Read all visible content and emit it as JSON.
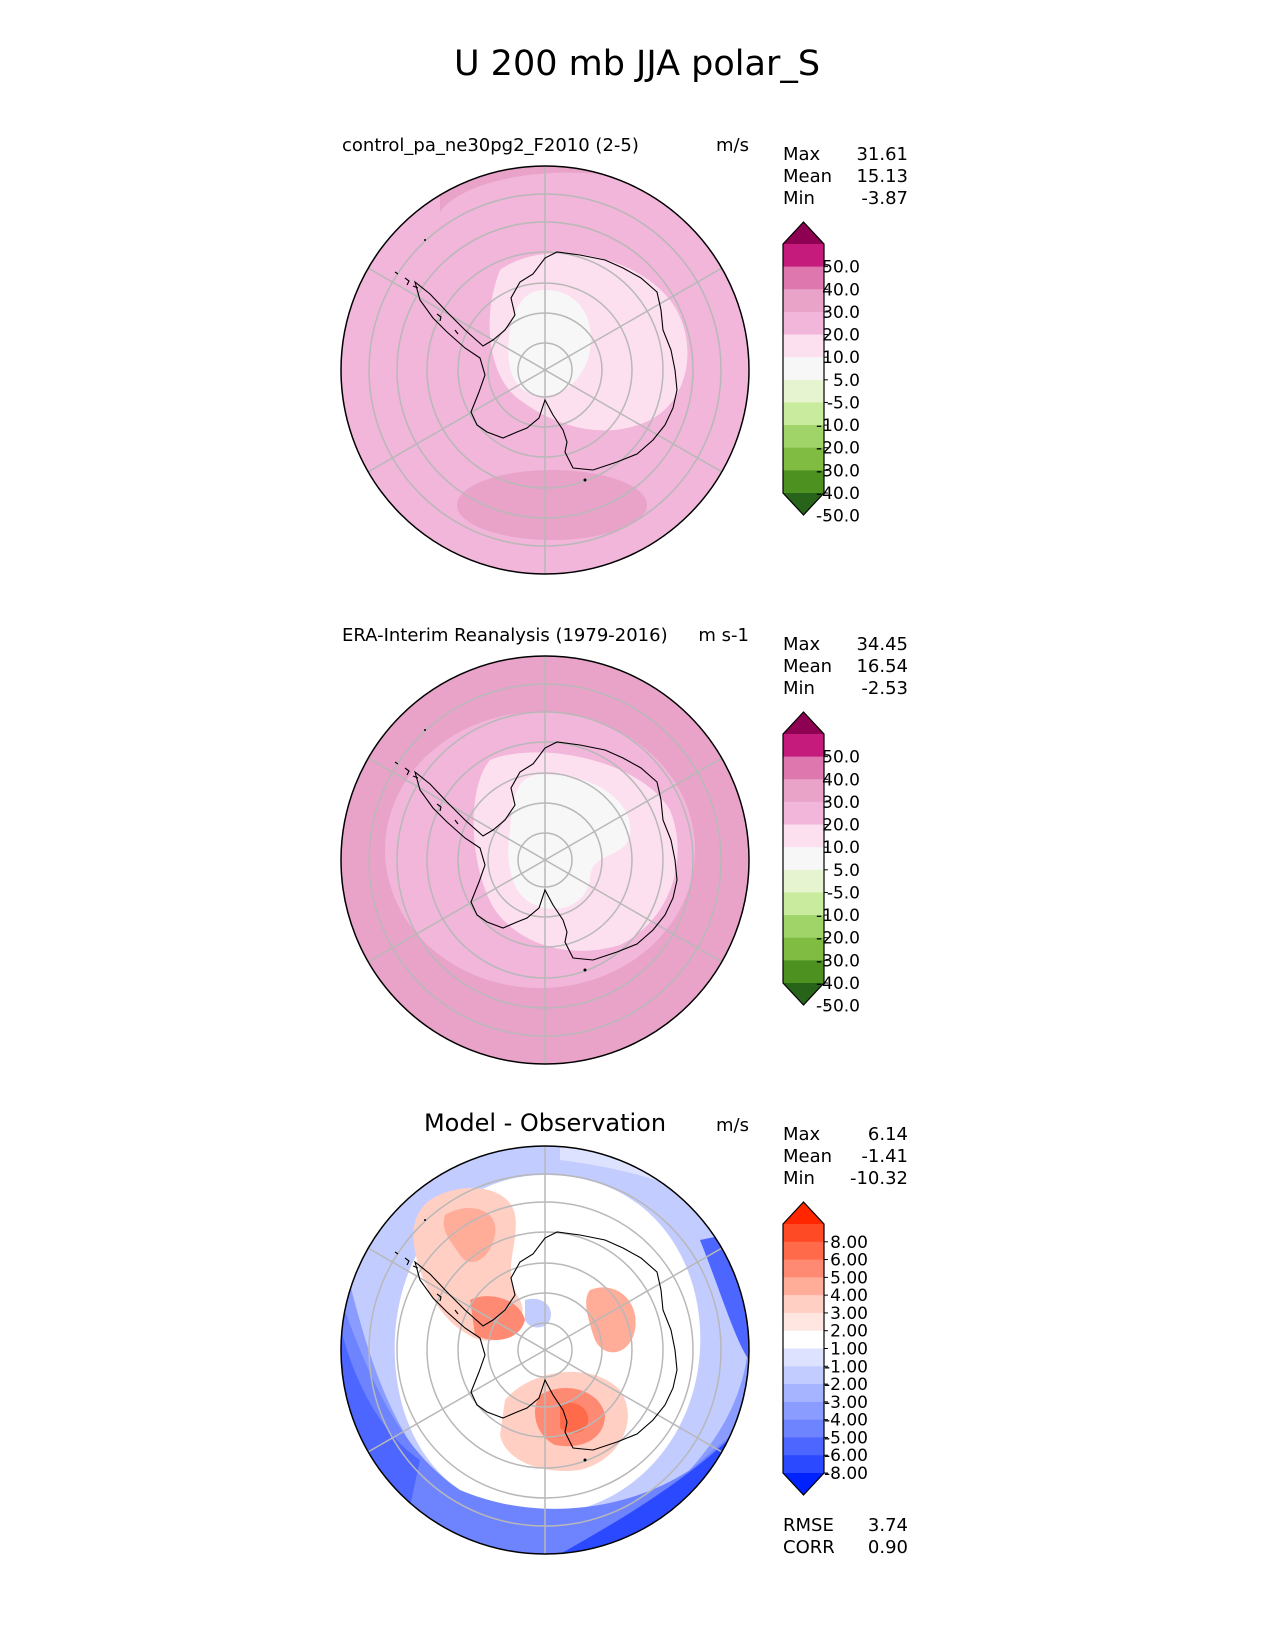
{
  "figure_title": "U 200 mb JJA polar_S",
  "colors": {
    "pink_scale": [
      "#8e0152",
      "#c51b7d",
      "#de77ae",
      "#e9a3c9",
      "#f1b6da",
      "#fde0ef",
      "#f7f7f7",
      "#e6f5d0",
      "#c9eb9e",
      "#a0d468",
      "#7fbc41",
      "#4d9221",
      "#276419"
    ],
    "diff_scale": [
      "#ff2600",
      "#ff4a26",
      "#ff6b4a",
      "#ff8a73",
      "#ffac99",
      "#ffcfc4",
      "#ffe6e0",
      "#ffffff",
      "#dde3ff",
      "#c2ccff",
      "#a6b4ff",
      "#8a9cff",
      "#6e84ff",
      "#4d66ff",
      "#2b4aff",
      "#0022ff"
    ],
    "grid": "#b8b8b8"
  },
  "chart_data": [
    {
      "type": "heatmap",
      "projection": "south polar stereographic",
      "title_left": "control_pa_ne30pg2_F2010 (2-5)",
      "units": "m/s",
      "stats": {
        "max_label": "Max",
        "max": "31.61",
        "mean_label": "Mean",
        "mean": "15.13",
        "min_label": "Min",
        "min": "-3.87"
      },
      "levels": [
        "50.0",
        "40.0",
        "30.0",
        "20.0",
        "10.0",
        "5.0",
        "-5.0",
        "-10.0",
        "-20.0",
        "-30.0",
        "-40.0",
        "-50.0"
      ],
      "field": {
        "outer_band": "20-30",
        "domain": "10-20",
        "inner": "5-10",
        "pole_core": "-5-5",
        "max_region": "Pacific sector 30-40"
      }
    },
    {
      "type": "heatmap",
      "projection": "south polar stereographic",
      "title_left": "ERA-Interim Reanalysis (1979-2016)",
      "units": "m s-1",
      "stats": {
        "max_label": "Max",
        "max": "34.45",
        "mean_label": "Mean",
        "mean": "16.54",
        "min_label": "Min",
        "min": "-2.53"
      },
      "levels": [
        "50.0",
        "40.0",
        "30.0",
        "20.0",
        "10.0",
        "5.0",
        "-5.0",
        "-10.0",
        "-20.0",
        "-30.0",
        "-40.0",
        "-50.0"
      ],
      "field": {
        "outer_band": "20-30",
        "domain": "10-20",
        "inner": "5-10",
        "pole_core": "-5-5",
        "max_region": "Indian Ocean sector 30-40"
      }
    },
    {
      "type": "heatmap",
      "projection": "south polar stereographic",
      "title_center": "Model - Observation",
      "units": "m/s",
      "stats": {
        "max_label": "Max",
        "max": "6.14",
        "mean_label": "Mean",
        "mean": "-1.41",
        "min_label": "Min",
        "min": "-10.32"
      },
      "levels": [
        "8.00",
        "6.00",
        "5.00",
        "4.00",
        "3.00",
        "2.00",
        "1.00",
        "-1.00",
        "-2.00",
        "-3.00",
        "-4.00",
        "-5.00",
        "-6.00",
        "-8.00"
      ],
      "metrics": {
        "rmse_label": "RMSE",
        "rmse": "3.74",
        "corr_label": "CORR",
        "corr": "0.90"
      },
      "field": {
        "positive_regions": [
          "Antarctic Peninsula 2-4",
          "Weddell/South Atlantic 2-5",
          "East Antarctica 1-3"
        ],
        "negative_regions": [
          "outer ring -3 to -8",
          "Pacific -5 to -8"
        ]
      }
    }
  ]
}
